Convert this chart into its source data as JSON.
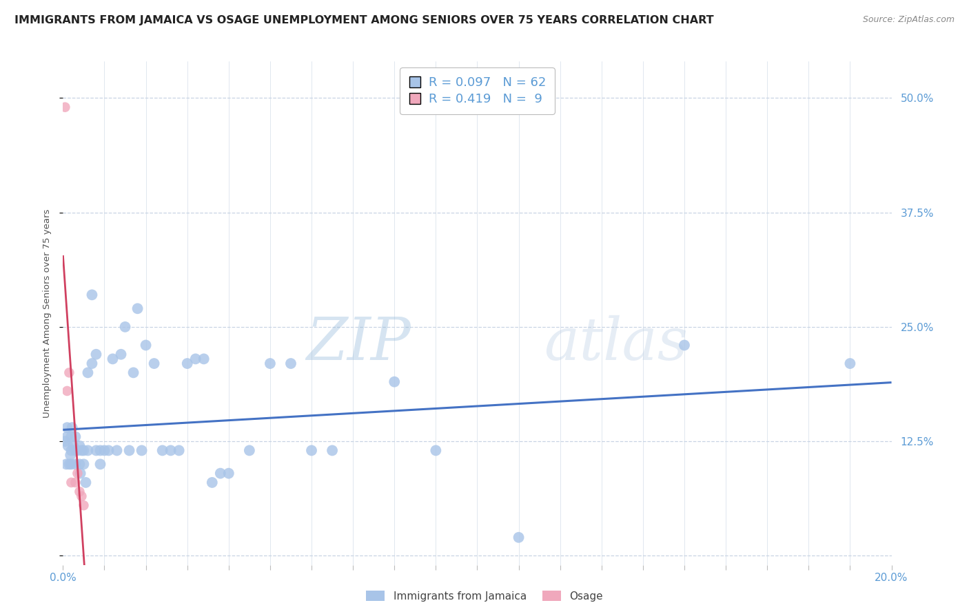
{
  "title": "IMMIGRANTS FROM JAMAICA VS OSAGE UNEMPLOYMENT AMONG SENIORS OVER 75 YEARS CORRELATION CHART",
  "source": "Source: ZipAtlas.com",
  "ylabel": "Unemployment Among Seniors over 75 years",
  "x_min": 0.0,
  "x_max": 0.2,
  "y_min": -0.01,
  "y_max": 0.54,
  "legend_entries": [
    {
      "R": "0.097",
      "N": "62",
      "color": "#a8c4e8"
    },
    {
      "R": "0.419",
      "N": " 9",
      "color": "#f0a8bc"
    }
  ],
  "jamaica_x": [
    0.0005,
    0.0008,
    0.001,
    0.001,
    0.0012,
    0.0015,
    0.0018,
    0.002,
    0.002,
    0.002,
    0.0022,
    0.0025,
    0.003,
    0.003,
    0.003,
    0.0035,
    0.004,
    0.004,
    0.0042,
    0.0045,
    0.005,
    0.005,
    0.0055,
    0.006,
    0.006,
    0.007,
    0.007,
    0.008,
    0.008,
    0.009,
    0.009,
    0.01,
    0.011,
    0.012,
    0.013,
    0.014,
    0.015,
    0.016,
    0.017,
    0.018,
    0.019,
    0.02,
    0.022,
    0.024,
    0.026,
    0.028,
    0.03,
    0.032,
    0.034,
    0.036,
    0.038,
    0.04,
    0.045,
    0.05,
    0.055,
    0.06,
    0.065,
    0.08,
    0.09,
    0.11,
    0.15,
    0.19
  ],
  "jamaica_y": [
    0.125,
    0.1,
    0.13,
    0.14,
    0.12,
    0.1,
    0.11,
    0.115,
    0.13,
    0.1,
    0.14,
    0.12,
    0.115,
    0.1,
    0.13,
    0.115,
    0.12,
    0.1,
    0.09,
    0.115,
    0.1,
    0.115,
    0.08,
    0.115,
    0.2,
    0.285,
    0.21,
    0.22,
    0.115,
    0.1,
    0.115,
    0.115,
    0.115,
    0.215,
    0.115,
    0.22,
    0.25,
    0.115,
    0.2,
    0.27,
    0.115,
    0.23,
    0.21,
    0.115,
    0.115,
    0.115,
    0.21,
    0.215,
    0.215,
    0.08,
    0.09,
    0.09,
    0.115,
    0.21,
    0.21,
    0.115,
    0.115,
    0.19,
    0.115,
    0.02,
    0.23,
    0.21
  ],
  "osage_x": [
    0.0005,
    0.001,
    0.0015,
    0.002,
    0.003,
    0.0035,
    0.004,
    0.0045,
    0.005
  ],
  "osage_y": [
    0.49,
    0.18,
    0.2,
    0.08,
    0.08,
    0.09,
    0.07,
    0.065,
    0.055
  ],
  "watermark_zip": "ZIP",
  "watermark_atlas": "atlas",
  "scatter_size_jamaica": 130,
  "scatter_size_osage": 110,
  "blue_color": "#a8c4e8",
  "pink_color": "#f0a8bc",
  "trendline_blue": "#4472c4",
  "trendline_pink": "#d04060",
  "grid_color": "#c8d4e4",
  "right_label_color": "#5b9bd5",
  "title_fontsize": 11.5,
  "axis_fontsize": 11,
  "legend_fontsize": 13
}
